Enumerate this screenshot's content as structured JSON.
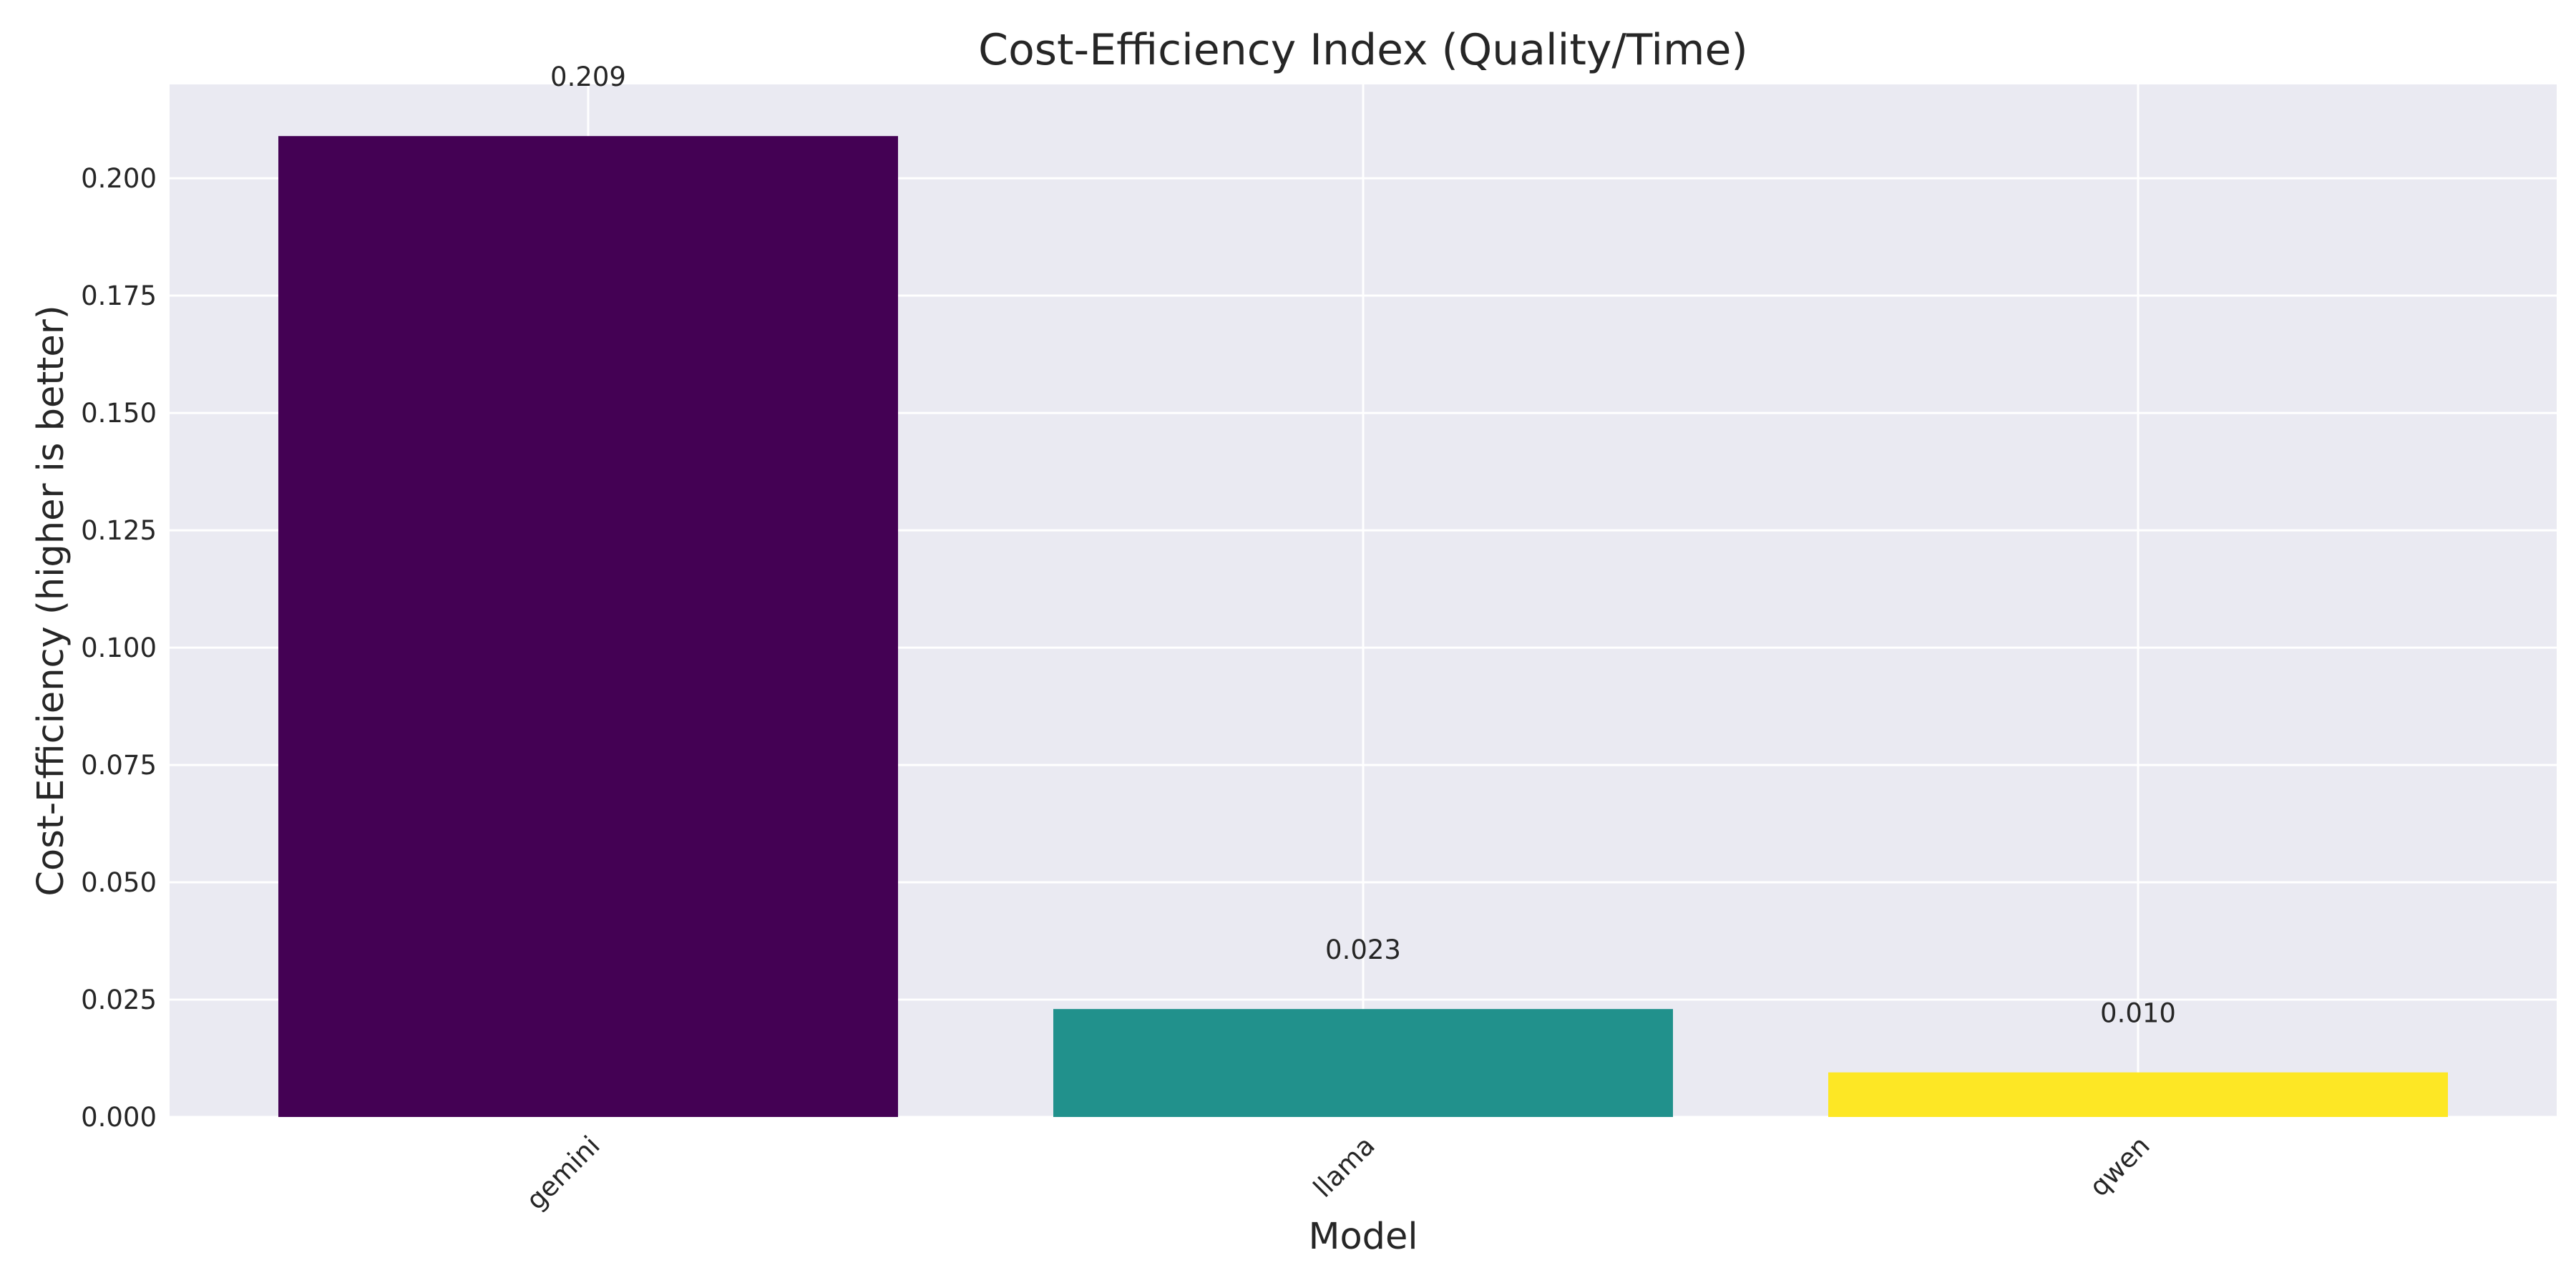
{
  "chart_data": {
    "type": "bar",
    "title": "Cost-Efficiency Index (Quality/Time)",
    "xlabel": "Model",
    "ylabel": "Cost-Efficiency (higher is better)",
    "categories": [
      "gemini",
      "llama",
      "qwen"
    ],
    "values": [
      0.209,
      0.023,
      0.0095
    ],
    "data_labels": [
      "0.209",
      "0.023",
      "0.010"
    ],
    "colors": [
      "#440154",
      "#21918c",
      "#fde725"
    ],
    "ylim": [
      0,
      0.22
    ],
    "yticks": [
      0.0,
      0.025,
      0.05,
      0.075,
      0.1,
      0.125,
      0.15,
      0.175,
      0.2
    ],
    "ytick_labels": [
      "0.000",
      "0.025",
      "0.050",
      "0.075",
      "0.100",
      "0.125",
      "0.150",
      "0.175",
      "0.200"
    ],
    "grid": true,
    "x_tick_rotation": "45 degrees",
    "background_color": "#eaeaf2",
    "grid_color": "#ffffff"
  }
}
